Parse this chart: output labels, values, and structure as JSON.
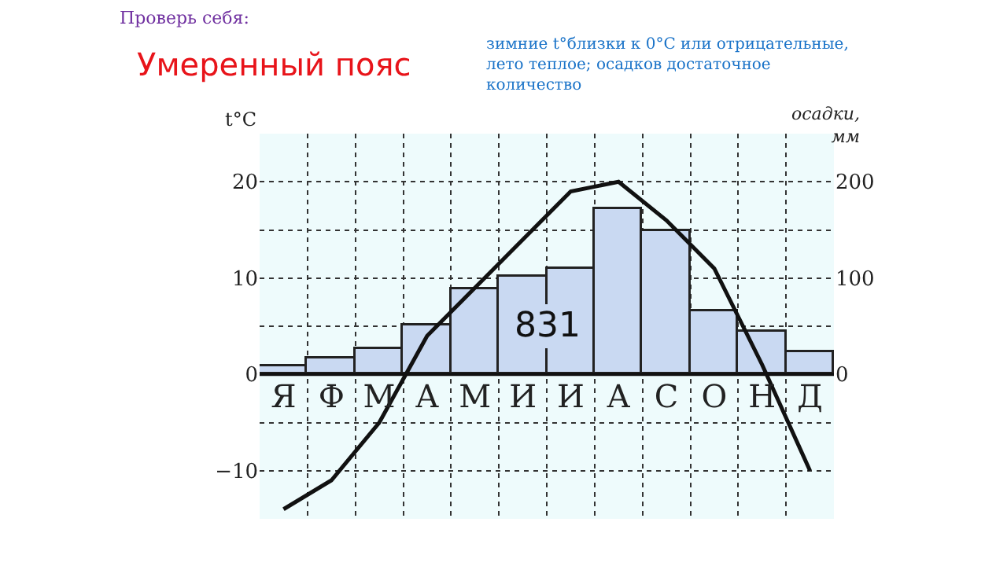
{
  "chart_data": {
    "type": "bar",
    "title": "Умеренный пояс",
    "subtitle": "зимние t°близки к 0°C или отрицательные, лето теплое; осадков достаточное количество",
    "xlabel": null,
    "ylabel": "t°C",
    "y2label": "осадки, мм",
    "categories": [
      "Я",
      "Ф",
      "М",
      "А",
      "М",
      "И",
      "И",
      "А",
      "С",
      "О",
      "Н",
      "Д"
    ],
    "series": [
      {
        "axis": "y2",
        "color": "#c9d9f2",
        "values": [
          8,
          16,
          27,
          51,
          88,
          102,
          109,
          171,
          148,
          65,
          45,
          23
        ]
      },
      {
        "type": "line",
        "axis": "y",
        "color": "#111111",
        "values": [
          -14,
          -11,
          -5,
          4,
          9,
          14,
          19,
          20,
          16,
          11,
          1,
          -10
        ]
      }
    ],
    "ylim": [
      -15,
      25
    ],
    "yticks": [
      {
        "value": -15,
        "label": null
      },
      -10,
      {
        "value": -5,
        "label": null
      },
      0,
      {
        "value": 5,
        "label": null
      },
      10,
      {
        "value": 15,
        "label": null
      },
      20,
      {
        "value": 25,
        "label": null
      }
    ],
    "y2lim": [
      -150,
      250
    ],
    "y2ticks": [
      0,
      100,
      200
    ],
    "annotations": [
      "Проверь себя:",
      "831"
    ],
    "grid": true,
    "legend": false,
    "marker": "none",
    "line_style": "solid"
  }
}
